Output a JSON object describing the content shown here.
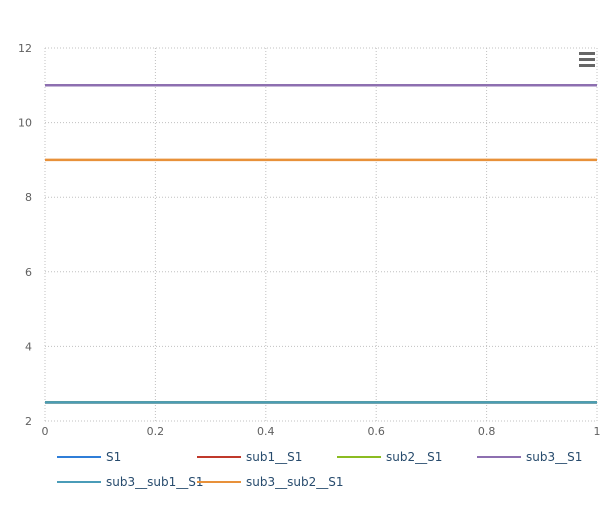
{
  "chart_data": {
    "type": "line",
    "title": "",
    "xlabel": "",
    "ylabel": "",
    "xlim": [
      0,
      1
    ],
    "ylim": [
      2,
      12
    ],
    "xticks": [
      0,
      0.2,
      0.4,
      0.6,
      0.8,
      1
    ],
    "xtick_labels": [
      "0",
      "0.2",
      "0.4",
      "0.6",
      "0.8",
      "1"
    ],
    "yticks": [
      2,
      4,
      6,
      8,
      10,
      12
    ],
    "ytick_labels": [
      "2",
      "4",
      "6",
      "8",
      "10",
      "12"
    ],
    "grid": true,
    "legend_position": "bottom",
    "series": [
      {
        "name": "S1",
        "color": "#2f7ed8",
        "x": [
          0,
          1
        ],
        "y": [
          2.5,
          2.5
        ]
      },
      {
        "name": "sub1__S1",
        "color": "#c0392b",
        "x": [
          0,
          1
        ],
        "y": [
          2.5,
          2.5
        ]
      },
      {
        "name": "sub2__S1",
        "color": "#8bbc21",
        "x": [
          0,
          1
        ],
        "y": [
          2.5,
          2.5
        ]
      },
      {
        "name": "sub3__S1",
        "color": "#8d6fb0",
        "x": [
          0,
          1
        ],
        "y": [
          11,
          11
        ]
      },
      {
        "name": "sub3__sub1__S1",
        "color": "#4a9cb8",
        "x": [
          0,
          1
        ],
        "y": [
          2.5,
          2.5
        ]
      },
      {
        "name": "sub3__sub2__S1",
        "color": "#e8913a",
        "x": [
          0,
          1
        ],
        "y": [
          9,
          9
        ]
      }
    ]
  },
  "toolbar": {
    "menu_icon": "hamburger-menu-icon"
  }
}
